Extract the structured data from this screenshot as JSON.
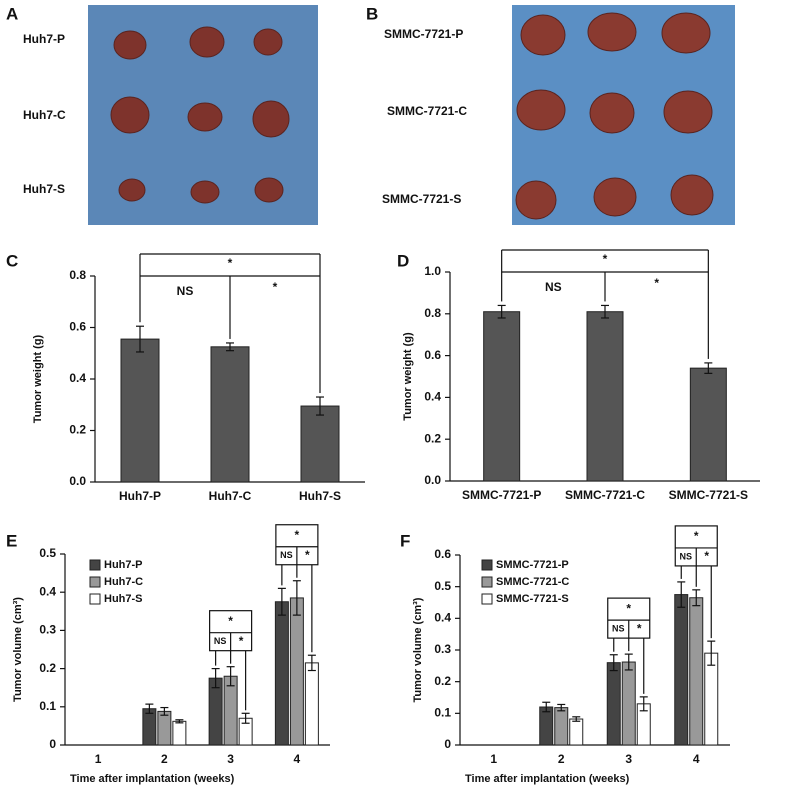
{
  "photos": [
    {
      "label": "A",
      "rows": [
        "Huh7-P",
        "Huh7-C",
        "Huh7-S"
      ]
    },
    {
      "label": "B",
      "rows": [
        "SMMC-7721-P",
        "SMMC-7721-C",
        "SMMC-7721-S"
      ]
    }
  ],
  "chart_data": [
    {
      "type": "bar",
      "label": "C",
      "ylabel": "Tumor weight (g)",
      "categories": [
        "Huh7-P",
        "Huh7-C",
        "Huh7-S"
      ],
      "values": [
        0.555,
        0.525,
        0.295
      ],
      "errors": [
        0.05,
        0.015,
        0.035
      ],
      "color": "#555555",
      "ylim": [
        0,
        0.8
      ],
      "yticks": [
        {
          "value": 0,
          "label": "0.0"
        },
        0.2,
        0.4,
        0.6,
        0.8
      ],
      "annotations": [
        "*",
        "NS",
        "*"
      ]
    },
    {
      "type": "bar",
      "label": "D",
      "ylabel": "Tumor weight (g)",
      "categories": [
        "SMMC-7721-P",
        "SMMC-7721-C",
        "SMMC-7721-S"
      ],
      "values": [
        0.81,
        0.81,
        0.54
      ],
      "errors": [
        0.03,
        0.03,
        0.025
      ],
      "color": "#555555",
      "ylim": [
        0,
        1
      ],
      "yticks": [
        {
          "value": 0,
          "label": "0.0"
        },
        0.2,
        0.4,
        0.6,
        0.8,
        {
          "value": 1,
          "label": "1.0"
        }
      ],
      "annotations": [
        "*",
        "NS",
        "*"
      ]
    },
    {
      "type": "grouped-bar",
      "label": "E",
      "ylabel": "Tumor volume (cm³)",
      "xlabel": "Time after implantation (weeks)",
      "categories": [
        "1",
        "2",
        "3",
        "4"
      ],
      "series": [
        {
          "name": "Huh7-P",
          "color": "#444444",
          "values": [
            null,
            0.095,
            0.175,
            0.375
          ],
          "errors": [
            null,
            0.012,
            0.025,
            0.035
          ]
        },
        {
          "name": "Huh7-C",
          "color": "#999999",
          "values": [
            null,
            0.088,
            0.18,
            0.385
          ],
          "errors": [
            null,
            0.01,
            0.025,
            0.045
          ]
        },
        {
          "name": "Huh7-S",
          "color": "#ffffff",
          "values": [
            null,
            0.062,
            0.07,
            0.215
          ],
          "errors": [
            null,
            0.004,
            0.013,
            0.02
          ]
        }
      ],
      "ylim": [
        0,
        0.5
      ],
      "yticks": [
        0,
        0.1,
        0.2,
        0.3,
        0.4,
        0.5
      ],
      "annotations": [
        "*",
        "NS",
        "*",
        "*",
        "NS",
        "*"
      ]
    },
    {
      "type": "grouped-bar",
      "label": "F",
      "ylabel": "Tumor volume (cm³)",
      "xlabel": "Time after implantation (weeks)",
      "categories": [
        "1",
        "2",
        "3",
        "4"
      ],
      "series": [
        {
          "name": "SMMC-7721-P",
          "color": "#444444",
          "values": [
            null,
            0.12,
            0.26,
            0.475
          ],
          "errors": [
            null,
            0.015,
            0.025,
            0.04
          ]
        },
        {
          "name": "SMMC-7721-C",
          "color": "#999999",
          "values": [
            null,
            0.118,
            0.262,
            0.465
          ],
          "errors": [
            null,
            0.01,
            0.025,
            0.025
          ]
        },
        {
          "name": "SMMC-7721-S",
          "color": "#ffffff",
          "values": [
            null,
            0.082,
            0.13,
            0.29
          ],
          "errors": [
            null,
            0.007,
            0.022,
            0.038
          ]
        }
      ],
      "ylim": [
        0,
        0.6
      ],
      "yticks": [
        0,
        0.1,
        0.2,
        0.3,
        0.4,
        0.5,
        0.6
      ],
      "annotations": [
        "*",
        "NS",
        "*",
        "*",
        "NS",
        "*"
      ]
    }
  ]
}
